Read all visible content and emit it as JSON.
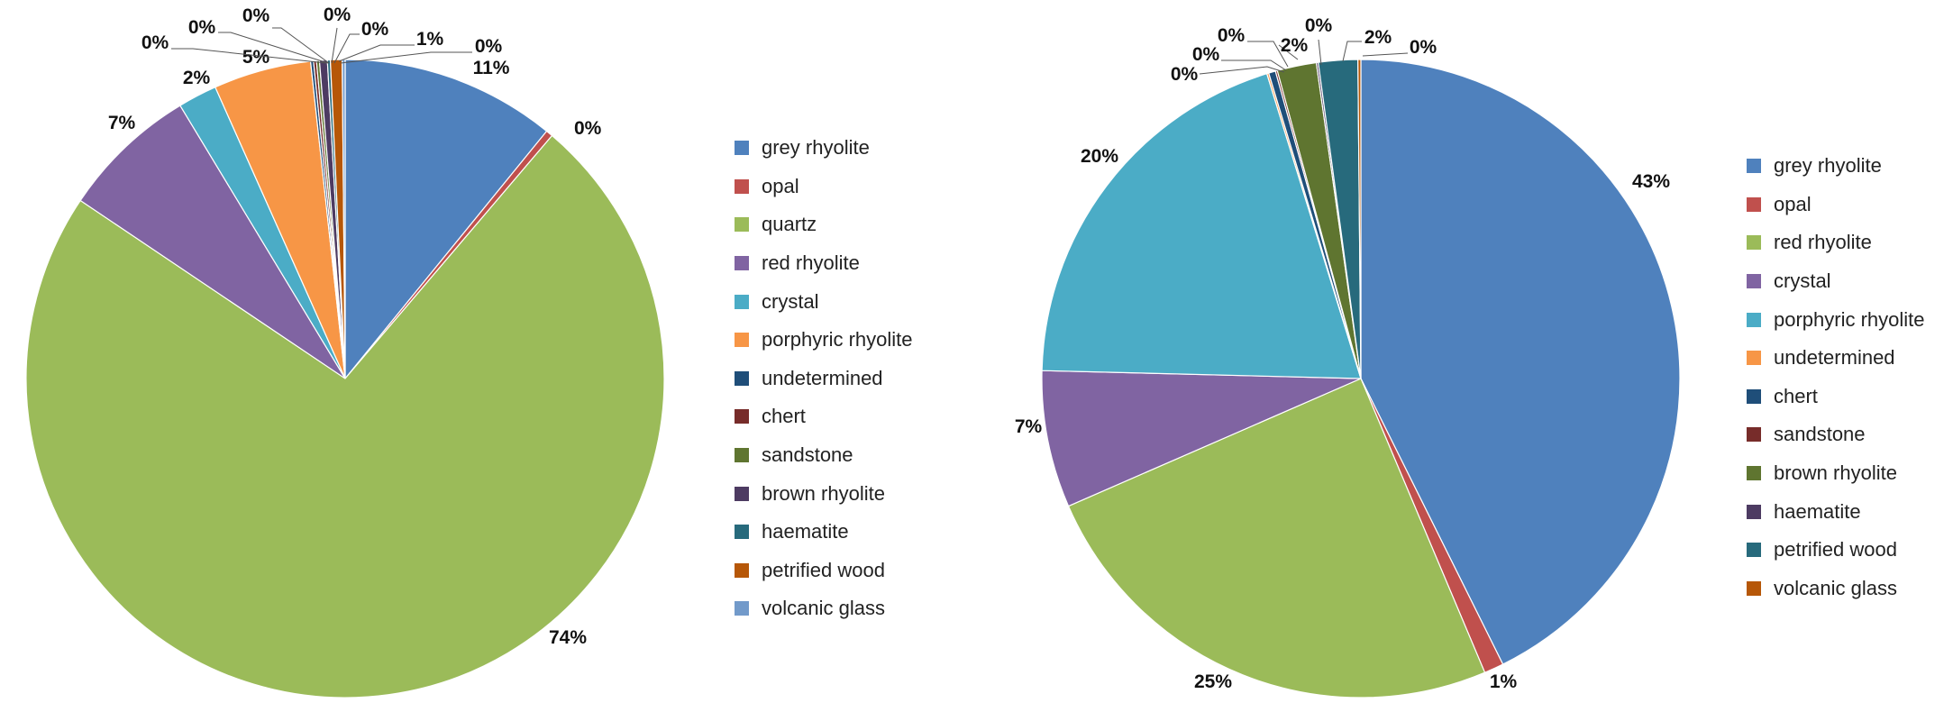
{
  "chart_data": [
    {
      "type": "pie",
      "title": "",
      "legend_position": "right",
      "slices": [
        {
          "name": "grey rhyolite",
          "value": 11,
          "label": "11%",
          "color": "#4f81bd"
        },
        {
          "name": "opal",
          "value": 0.35,
          "label": "0%",
          "color": "#c0504d"
        },
        {
          "name": "quartz",
          "value": 74,
          "label": "74%",
          "color": "#9bbb59"
        },
        {
          "name": "red rhyolite",
          "value": 7,
          "label": "7%",
          "color": "#8064a2"
        },
        {
          "name": "crystal",
          "value": 2,
          "label": "2%",
          "color": "#4bacc6"
        },
        {
          "name": "porphyric rhyolite",
          "value": 5,
          "label": "5%",
          "color": "#f79646"
        },
        {
          "name": "undetermined",
          "value": 0.15,
          "label": "0%",
          "color": "#1f4e79"
        },
        {
          "name": "chert",
          "value": 0.15,
          "label": "0%",
          "color": "#772c2a"
        },
        {
          "name": "sandstone",
          "value": 0.15,
          "label": "0%",
          "color": "#5f7530"
        },
        {
          "name": "brown rhyolite",
          "value": 0.4,
          "label": "0%",
          "color": "#4d3b62"
        },
        {
          "name": "haematite",
          "value": 0.15,
          "label": "0%",
          "color": "#276a7c"
        },
        {
          "name": "petrified wood",
          "value": 0.6,
          "label": "1%",
          "color": "#b65708"
        },
        {
          "name": "volcanic glass",
          "value": 0.15,
          "label": "0%",
          "color": "#729aca"
        }
      ]
    },
    {
      "type": "pie",
      "title": "",
      "legend_position": "right",
      "slices": [
        {
          "name": "grey rhyolite",
          "value": 43,
          "label": "43%",
          "color": "#4f81bd"
        },
        {
          "name": "opal",
          "value": 1,
          "label": "1%",
          "color": "#c0504d"
        },
        {
          "name": "red rhyolite",
          "value": 25,
          "label": "25%",
          "color": "#9bbb59"
        },
        {
          "name": "crystal",
          "value": 7,
          "label": "7%",
          "color": "#8064a2"
        },
        {
          "name": "porphyric rhyolite",
          "value": 20,
          "label": "20%",
          "color": "#4bacc6"
        },
        {
          "name": "undetermined",
          "value": 0.1,
          "label": "0%",
          "color": "#f79646"
        },
        {
          "name": "chert",
          "value": 0.35,
          "label": "0%",
          "color": "#1f4e79"
        },
        {
          "name": "sandstone",
          "value": 0.1,
          "label": "0%",
          "color": "#772c2a"
        },
        {
          "name": "brown rhyolite",
          "value": 2,
          "label": "2%",
          "color": "#5f7530"
        },
        {
          "name": "haematite",
          "value": 0.1,
          "label": "0%",
          "color": "#4d3b62"
        },
        {
          "name": "petrified wood",
          "value": 2,
          "label": "2%",
          "color": "#276a7c"
        },
        {
          "name": "volcanic glass",
          "value": 0.15,
          "label": "0%",
          "color": "#b65708"
        }
      ]
    }
  ]
}
